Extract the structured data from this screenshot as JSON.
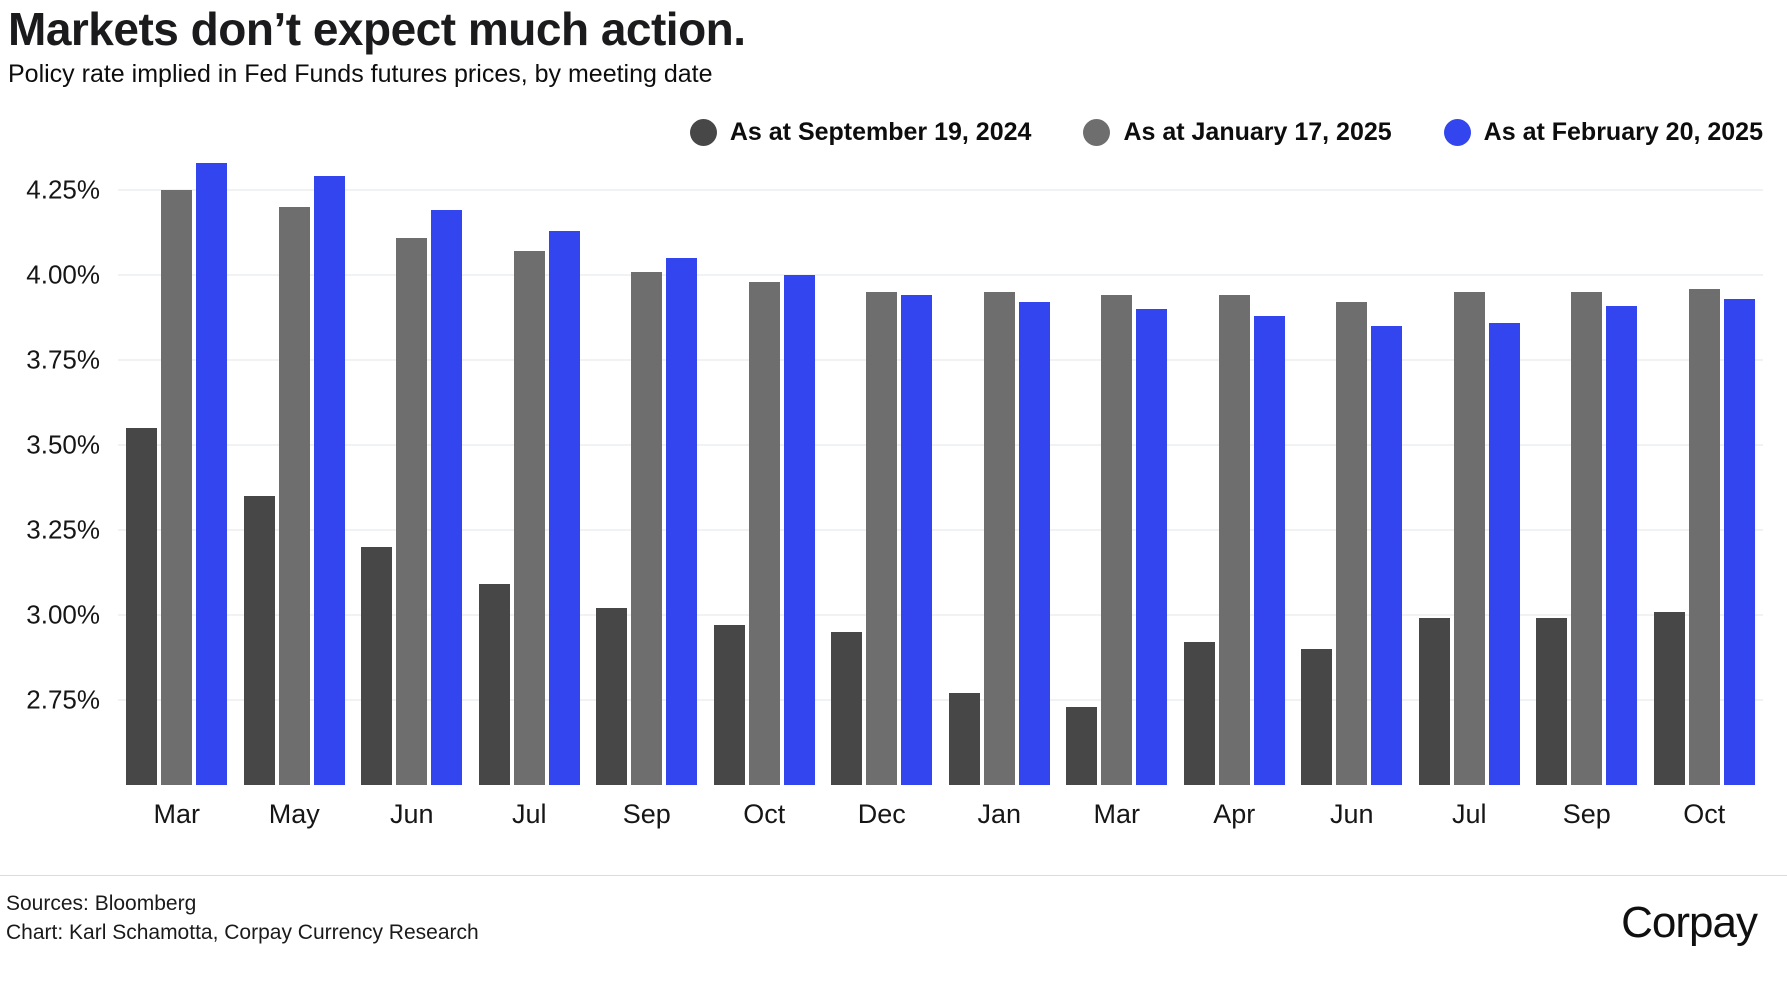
{
  "header": {
    "title": "Markets don’t expect much action.",
    "subtitle": "Policy rate implied in Fed Funds futures prices, by meeting date"
  },
  "footer": {
    "sources": "Sources: Bloomberg",
    "credit": "Chart: Karl Schamotta, Corpay Currency Research",
    "logo_text": "Corpay",
    "logo_caret": "^",
    "logo_caret_color": "#c22047"
  },
  "colors": {
    "background": "#ffffff",
    "gridline": "#f1f2f4",
    "text": "#141414",
    "divider": "#dcdcdc"
  },
  "chart_data": {
    "type": "bar",
    "title": "Markets don’t expect much action.",
    "subtitle": "Policy rate implied in Fed Funds futures prices, by meeting date",
    "categories": [
      "Mar",
      "May",
      "Jun",
      "Jul",
      "Sep",
      "Oct",
      "Dec",
      "Jan",
      "Mar",
      "Apr",
      "Jun",
      "Jul",
      "Sep",
      "Oct"
    ],
    "series": [
      {
        "name": "As at September 19, 2024",
        "color": "#474747",
        "values": [
          3.55,
          3.35,
          3.2,
          3.09,
          3.02,
          2.97,
          2.95,
          2.77,
          2.73,
          2.92,
          2.9,
          2.99,
          2.99,
          3.01
        ]
      },
      {
        "name": "As at January 17, 2025",
        "color": "#6e6e6e",
        "values": [
          4.25,
          4.2,
          4.11,
          4.07,
          4.01,
          3.98,
          3.95,
          3.95,
          3.94,
          3.94,
          3.92,
          3.95,
          3.95,
          3.96
        ]
      },
      {
        "name": "As at February 20, 2025",
        "color": "#3345ef",
        "values": [
          4.33,
          4.29,
          4.19,
          4.13,
          4.05,
          4.0,
          3.94,
          3.92,
          3.9,
          3.88,
          3.85,
          3.86,
          3.91,
          3.93
        ]
      }
    ],
    "xlabel": "",
    "ylabel": "",
    "y_ticks": [
      4.25,
      4.0,
      3.75,
      3.5,
      3.25,
      3.0,
      2.75
    ],
    "y_tick_labels": [
      "4.25%",
      "4.00%",
      "3.75%",
      "3.50%",
      "3.25%",
      "3.00%",
      "2.75%"
    ],
    "ylim": [
      2.5,
      4.5
    ],
    "y_format": "percent",
    "grid": true,
    "legend_position": "top-right"
  }
}
